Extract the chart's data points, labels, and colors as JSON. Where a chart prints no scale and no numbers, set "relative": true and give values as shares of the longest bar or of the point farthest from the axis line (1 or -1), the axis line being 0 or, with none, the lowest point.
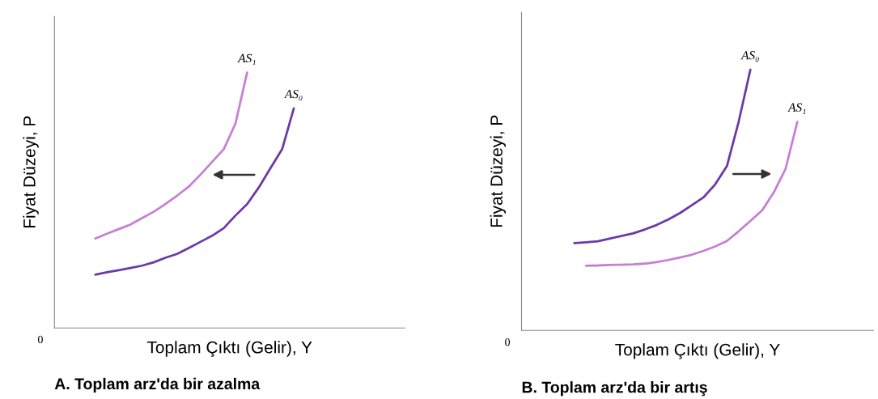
{
  "chart_data": [
    {
      "type": "line",
      "relative": true,
      "title": "A. Toplam arz'da bir azalma",
      "xlabel": "Toplam Çıktı (Gelir), Y",
      "ylabel": "Fiyat Düzeyi, P",
      "annotations": [
        "0"
      ],
      "marker": "none",
      "line_style": "solid",
      "categories": [
        null,
        null,
        null,
        null,
        null,
        null,
        null,
        null,
        null,
        null,
        null,
        null,
        null,
        null,
        null,
        null,
        null,
        null,
        null,
        null,
        null,
        null,
        null,
        null,
        null,
        null,
        null,
        null,
        null,
        null
      ],
      "series": [
        {
          "name": "AS₀",
          "color": "#6b3aa6",
          "values": [
            null,
            null,
            null,
            0.209,
            0.218,
            0.226,
            0.235,
            0.244,
            0.257,
            0.275,
            0.29,
            0.313,
            0.337,
            0.361,
            0.391,
            0.44,
            0.485,
            0.55,
            0.626,
            0.7,
            0.86,
            null,
            null,
            null,
            null,
            null,
            null,
            null,
            null,
            null
          ]
        },
        {
          "name": "AS₁",
          "color": "#c77fd4",
          "values": [
            null,
            null,
            null,
            0.35,
            0.369,
            0.387,
            0.405,
            0.43,
            0.455,
            0.485,
            0.518,
            0.553,
            0.6,
            0.65,
            0.7,
            0.8,
            1.0,
            null,
            null,
            null,
            null,
            null,
            null,
            null,
            null,
            null,
            null,
            null,
            null,
            null
          ]
        }
      ]
    },
    {
      "type": "line",
      "relative": true,
      "title": "B. Toplam arz'da bir artış",
      "xlabel": "Toplam Çıktı (Gelir), Y",
      "ylabel": "Fiyat Düzeyi, P",
      "annotations": [
        "0"
      ],
      "marker": "none",
      "line_style": "solid",
      "categories": [
        null,
        null,
        null,
        null,
        null,
        null,
        null,
        null,
        null,
        null,
        null,
        null,
        null,
        null,
        null,
        null,
        null,
        null,
        null,
        null,
        null,
        null,
        null,
        null,
        null,
        null,
        null,
        null,
        null,
        null
      ],
      "series": [
        {
          "name": "AS₀",
          "color": "#6b3aa6",
          "values": [
            null,
            null,
            null,
            null,
            0.335,
            0.338,
            0.342,
            0.352,
            0.362,
            0.372,
            0.387,
            0.404,
            0.425,
            0.45,
            0.48,
            0.51,
            0.56,
            0.63,
            0.8,
            1.0,
            null,
            null,
            null,
            null,
            null,
            null,
            null,
            null,
            null,
            null
          ]
        },
        {
          "name": "AS₁",
          "color": "#c77fd4",
          "values": [
            null,
            null,
            null,
            null,
            null,
            0.248,
            0.249,
            0.251,
            0.252,
            0.253,
            0.256,
            0.262,
            0.27,
            0.28,
            0.29,
            0.305,
            0.322,
            0.343,
            0.38,
            0.42,
            0.46,
            0.53,
            0.62,
            0.8,
            null,
            null,
            null,
            null,
            null,
            null
          ]
        }
      ]
    }
  ]
}
